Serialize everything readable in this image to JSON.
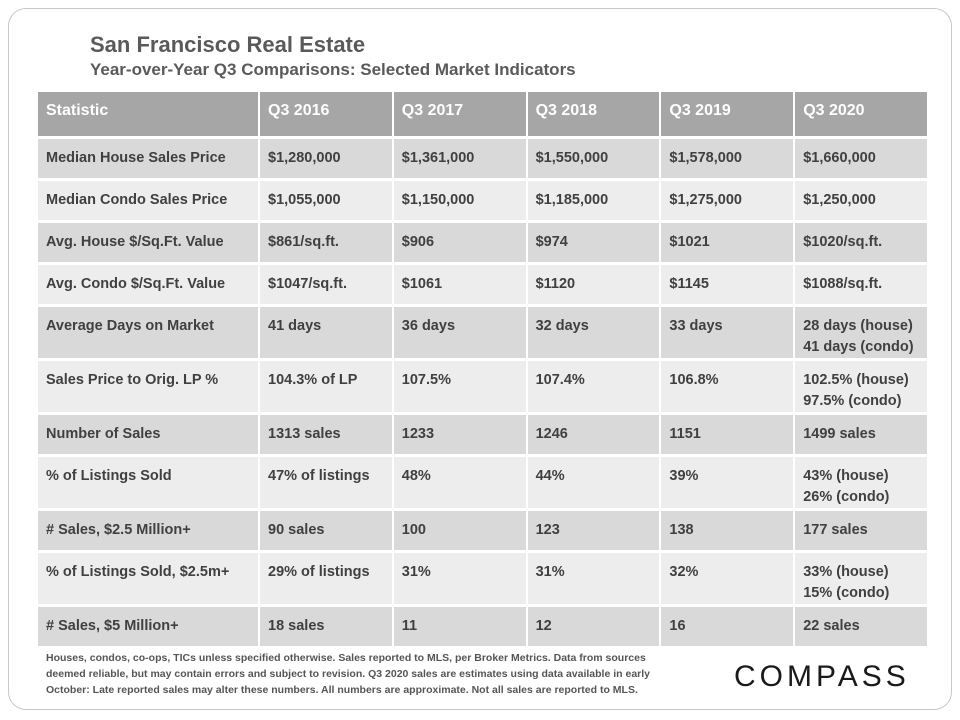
{
  "header": {
    "title": "San Francisco Real Estate",
    "subtitle": "Year-over-Year  Q3 Comparisons:  Selected Market Indicators"
  },
  "table": {
    "columns": [
      "Statistic",
      "Q3 2016",
      "Q3 2017",
      "Q3 2018",
      "Q3 2019",
      "Q3 2020"
    ],
    "rows": [
      [
        "Median House Sales Price",
        "$1,280,000",
        "$1,361,000",
        "$1,550,000",
        "$1,578,000",
        "$1,660,000"
      ],
      [
        "Median Condo Sales Price",
        "$1,055,000",
        "$1,150,000",
        "$1,185,000",
        "$1,275,000",
        "$1,250,000"
      ],
      [
        "Avg. House $/Sq.Ft. Value",
        "$861/sq.ft.",
        "$906",
        "$974",
        "$1021",
        "$1020/sq.ft."
      ],
      [
        "Avg. Condo $/Sq.Ft. Value",
        "$1047/sq.ft.",
        "$1061",
        "$1120",
        "$1145",
        "$1088/sq.ft."
      ],
      [
        "Average Days on Market",
        "41 days",
        "36 days",
        "32 days",
        "33 days",
        [
          "28 days (house)",
          "41 days (condo)"
        ]
      ],
      [
        "Sales Price to Orig. LP %",
        "104.3% of LP",
        "107.5%",
        "107.4%",
        "106.8%",
        [
          "102.5% (house)",
          "97.5% (condo)"
        ]
      ],
      [
        "Number of Sales",
        "1313 sales",
        "1233",
        "1246",
        "1151",
        "1499 sales"
      ],
      [
        "% of Listings Sold",
        "47% of listings",
        "48%",
        "44%",
        "39%",
        [
          "43% (house)",
          "26% (condo)"
        ]
      ],
      [
        "# Sales, $2.5 Million+",
        "90 sales",
        "100",
        "123",
        "138",
        "177 sales"
      ],
      [
        "% of Listings Sold, $2.5m+",
        "29% of listings",
        "31%",
        "31%",
        "32%",
        [
          "33% (house)",
          "15% (condo)"
        ]
      ],
      [
        "# Sales, $5 Million+",
        "18 sales",
        "11",
        "12",
        "16",
        "22 sales"
      ]
    ]
  },
  "footnote": {
    "line1": "Houses, condos, co-ops, TICs unless specified otherwise. Sales reported to MLS, per Broker Metrics. Data from sources",
    "line2": "deemed reliable, but may contain errors and subject to revision. Q3 2020 sales are estimates using data available in early",
    "line3": "October: Late reported sales may alter these numbers. All numbers are approximate. Not all sales are reported to MLS."
  },
  "logo": {
    "text": "COMPASS"
  },
  "colors": {
    "header_bg": "#a6a6a6",
    "row_dark": "#d9d9d9",
    "row_light": "#ededed",
    "text": "#404040"
  }
}
